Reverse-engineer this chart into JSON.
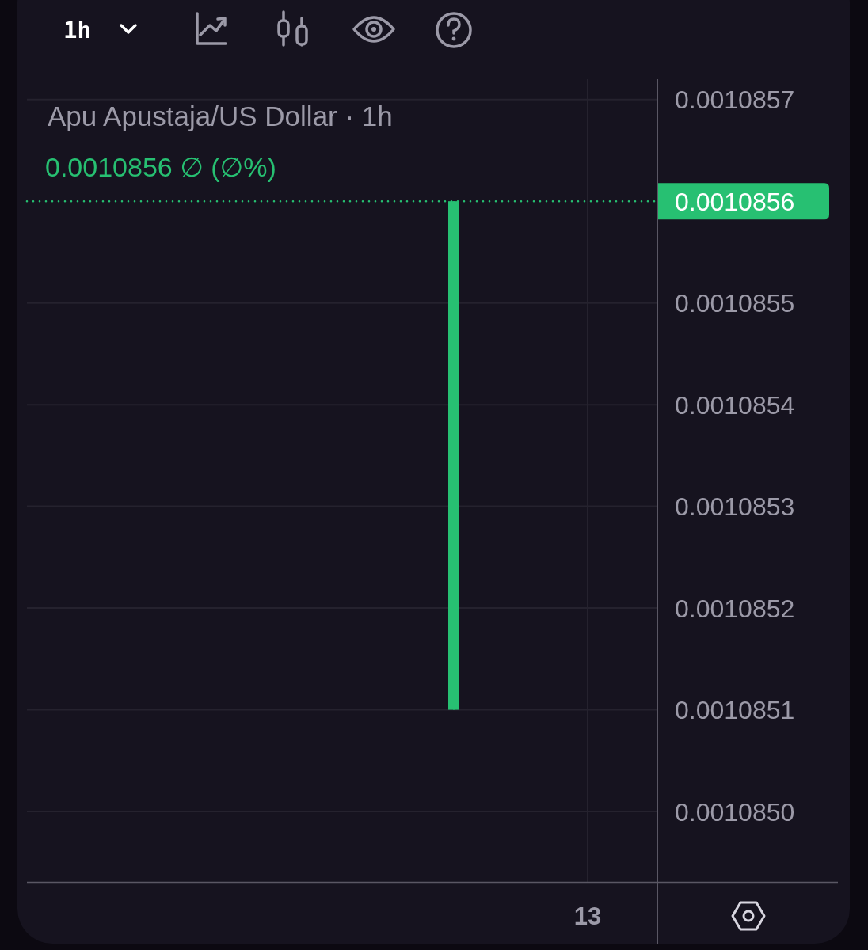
{
  "chart_data": {
    "type": "candlestick",
    "title": "Apu Apustaja/US Dollar · 1h",
    "annotations": [
      "1h",
      "0.0010856 ∅ (∅%)"
    ],
    "categories": [
      null,
      null,
      null,
      null,
      "13"
    ],
    "ohlc": [
      null,
      null,
      null,
      [
        0.0010851,
        0.0010856,
        0.0010851,
        0.0010856
      ],
      null
    ],
    "color": "#27c072",
    "ylim": [
      0.00108493,
      0.00108572
    ],
    "yticks": [
      {
        "value": 0.0010857,
        "label": "0.0010857"
      },
      {
        "value": 0.0010855,
        "label": "0.0010855"
      },
      {
        "value": 0.0010854,
        "label": "0.0010854"
      },
      {
        "value": 0.0010853,
        "label": "0.0010853"
      },
      {
        "value": 0.0010852,
        "label": "0.0010852"
      },
      {
        "value": 0.0010851,
        "label": "0.0010851"
      },
      {
        "value": 0.001085,
        "label": "0.0010850"
      }
    ],
    "ref_lines": [
      {
        "axis": "y",
        "value": 0.0010856,
        "label": "0.0010856",
        "color": "#27c072",
        "line_style": "dotted"
      }
    ],
    "grid": true
  }
}
